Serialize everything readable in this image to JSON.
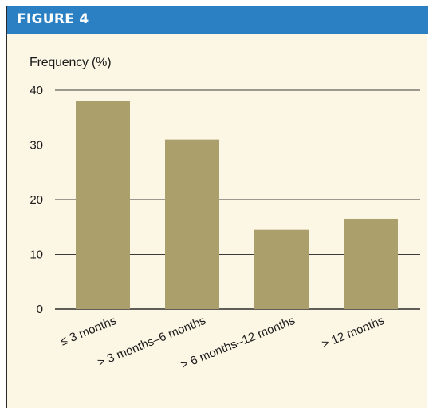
{
  "figure": {
    "title": "FIGURE 4"
  },
  "chart_data": {
    "type": "bar",
    "title": "",
    "xlabel": "",
    "ylabel": "Frequency (%)",
    "categories": [
      "≤ 3 months",
      "> 3 months–6 months",
      "> 6 months–12 months",
      "> 12 months"
    ],
    "values": [
      38,
      31,
      14.5,
      16.5
    ],
    "ylim": [
      0,
      40
    ],
    "yticks": [
      "0",
      "10",
      "20",
      "30",
      "40"
    ],
    "grid": true,
    "bar_color": "#ab9f6c",
    "header_color": "#2b7fc3",
    "background_color": "#fcf6e5"
  }
}
